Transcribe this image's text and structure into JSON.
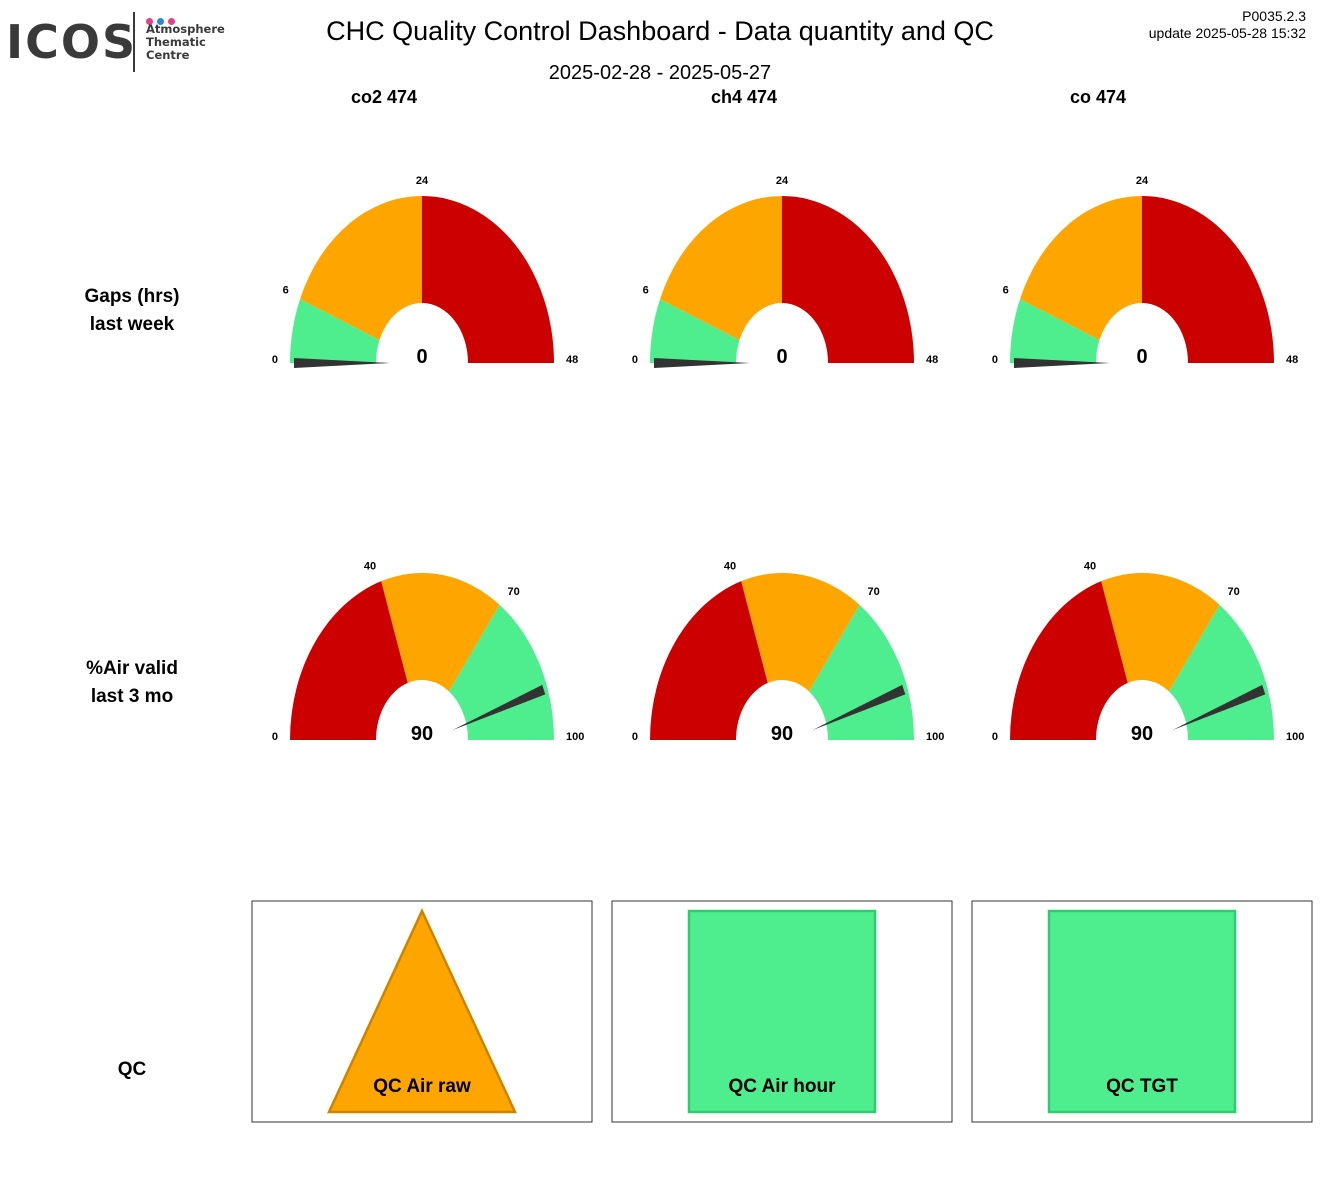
{
  "header": {
    "logo_text": "ICOS",
    "logo_subtitle": [
      "Atmosphere",
      "Thematic",
      "Centre"
    ],
    "logo_dot_colors": [
      "#e83e8c",
      "#2e86de",
      "#e83e8c"
    ],
    "title": "CHC  Quality Control Dashboard - Data quantity and QC",
    "date_range": "2025-02-28 - 2025-05-27",
    "version": "P0035.2.3",
    "update": "update  2025-05-28 15:32"
  },
  "columns": [
    "co2 474",
    "ch4 474",
    "co 474"
  ],
  "rows": {
    "gaps_label": [
      "Gaps (hrs)",
      "last week"
    ],
    "air_label": [
      "%Air valid",
      "last 3 mo"
    ],
    "qc_label": "QC"
  },
  "colors": {
    "green": "#4eee8f",
    "orange": "#ffa500",
    "red": "#cd0000",
    "needle": "#333333"
  },
  "chart_data": [
    {
      "type": "gauge",
      "name": "co2 474",
      "metric": "Gaps (hrs) last week",
      "range": [
        0,
        48
      ],
      "ticks": [
        0,
        6,
        24,
        48
      ],
      "bands": [
        {
          "from": 0,
          "to": 6,
          "color": "#4eee8f"
        },
        {
          "from": 6,
          "to": 24,
          "color": "#ffa500"
        },
        {
          "from": 24,
          "to": 48,
          "color": "#cd0000"
        }
      ],
      "value": 0
    },
    {
      "type": "gauge",
      "name": "ch4 474",
      "metric": "Gaps (hrs) last week",
      "range": [
        0,
        48
      ],
      "ticks": [
        0,
        6,
        24,
        48
      ],
      "bands": [
        {
          "from": 0,
          "to": 6,
          "color": "#4eee8f"
        },
        {
          "from": 6,
          "to": 24,
          "color": "#ffa500"
        },
        {
          "from": 24,
          "to": 48,
          "color": "#cd0000"
        }
      ],
      "value": 0
    },
    {
      "type": "gauge",
      "name": "co 474",
      "metric": "Gaps (hrs) last week",
      "range": [
        0,
        48
      ],
      "ticks": [
        0,
        6,
        24,
        48
      ],
      "bands": [
        {
          "from": 0,
          "to": 6,
          "color": "#4eee8f"
        },
        {
          "from": 6,
          "to": 24,
          "color": "#ffa500"
        },
        {
          "from": 24,
          "to": 48,
          "color": "#cd0000"
        }
      ],
      "value": 0
    },
    {
      "type": "gauge",
      "name": "co2 474",
      "metric": "%Air valid last 3 mo",
      "range": [
        0,
        100
      ],
      "ticks": [
        0,
        40,
        70,
        100
      ],
      "bands": [
        {
          "from": 0,
          "to": 40,
          "color": "#cd0000"
        },
        {
          "from": 40,
          "to": 70,
          "color": "#ffa500"
        },
        {
          "from": 70,
          "to": 100,
          "color": "#4eee8f"
        }
      ],
      "value": 90
    },
    {
      "type": "gauge",
      "name": "ch4 474",
      "metric": "%Air valid last 3 mo",
      "range": [
        0,
        100
      ],
      "ticks": [
        0,
        40,
        70,
        100
      ],
      "bands": [
        {
          "from": 0,
          "to": 40,
          "color": "#cd0000"
        },
        {
          "from": 40,
          "to": 70,
          "color": "#ffa500"
        },
        {
          "from": 70,
          "to": 100,
          "color": "#4eee8f"
        }
      ],
      "value": 90
    },
    {
      "type": "gauge",
      "name": "co 474",
      "metric": "%Air valid last 3 mo",
      "range": [
        0,
        100
      ],
      "ticks": [
        0,
        40,
        70,
        100
      ],
      "bands": [
        {
          "from": 0,
          "to": 40,
          "color": "#cd0000"
        },
        {
          "from": 40,
          "to": 70,
          "color": "#ffa500"
        },
        {
          "from": 70,
          "to": 100,
          "color": "#4eee8f"
        }
      ],
      "value": 90
    }
  ],
  "qc_indicators": [
    {
      "label": "QC Air raw",
      "shape": "triangle",
      "color": "#ffa500",
      "border": "#cc8400"
    },
    {
      "label": "QC Air hour",
      "shape": "square",
      "color": "#4eee8f",
      "border": "#2ecc71"
    },
    {
      "label": "QC TGT",
      "shape": "square",
      "color": "#4eee8f",
      "border": "#2ecc71"
    }
  ]
}
